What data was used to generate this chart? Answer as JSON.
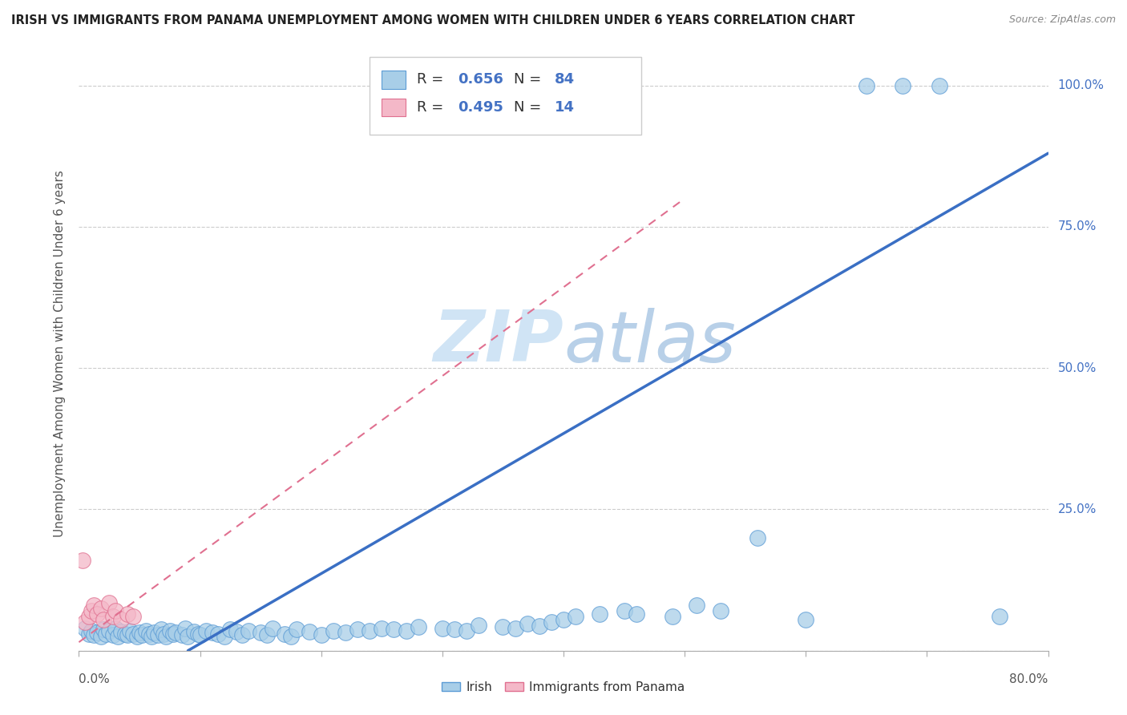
{
  "title": "IRISH VS IMMIGRANTS FROM PANAMA UNEMPLOYMENT AMONG WOMEN WITH CHILDREN UNDER 6 YEARS CORRELATION CHART",
  "source": "Source: ZipAtlas.com",
  "ylabel": "Unemployment Among Women with Children Under 6 years",
  "xlim": [
    0,
    0.8
  ],
  "ylim": [
    0.0,
    1.05
  ],
  "irish_color": "#A8CEE8",
  "irish_edge": "#5B9BD5",
  "panama_color": "#F4B8C8",
  "panama_edge": "#E07090",
  "trend_blue": "#3A6FC4",
  "trend_pink": "#E07090",
  "watermark_color": "#D0E4F5",
  "irish_x": [
    0.005,
    0.008,
    0.01,
    0.012,
    0.015,
    0.018,
    0.02,
    0.022,
    0.025,
    0.028,
    0.03,
    0.032,
    0.035,
    0.038,
    0.04,
    0.042,
    0.045,
    0.048,
    0.05,
    0.052,
    0.055,
    0.058,
    0.06,
    0.062,
    0.065,
    0.068,
    0.07,
    0.072,
    0.075,
    0.078,
    0.08,
    0.085,
    0.088,
    0.09,
    0.095,
    0.098,
    0.1,
    0.105,
    0.11,
    0.115,
    0.12,
    0.125,
    0.13,
    0.135,
    0.14,
    0.15,
    0.155,
    0.16,
    0.17,
    0.175,
    0.18,
    0.19,
    0.2,
    0.21,
    0.22,
    0.23,
    0.24,
    0.25,
    0.26,
    0.27,
    0.28,
    0.3,
    0.31,
    0.32,
    0.33,
    0.35,
    0.36,
    0.37,
    0.38,
    0.39,
    0.4,
    0.41,
    0.43,
    0.45,
    0.46,
    0.49,
    0.51,
    0.53,
    0.56,
    0.6,
    0.65,
    0.68,
    0.71,
    0.76
  ],
  "irish_y": [
    0.04,
    0.03,
    0.035,
    0.028,
    0.032,
    0.025,
    0.038,
    0.03,
    0.035,
    0.028,
    0.04,
    0.025,
    0.033,
    0.03,
    0.028,
    0.035,
    0.03,
    0.025,
    0.032,
    0.028,
    0.035,
    0.03,
    0.025,
    0.032,
    0.028,
    0.038,
    0.03,
    0.025,
    0.035,
    0.03,
    0.032,
    0.028,
    0.04,
    0.025,
    0.033,
    0.03,
    0.028,
    0.035,
    0.032,
    0.03,
    0.025,
    0.038,
    0.033,
    0.028,
    0.035,
    0.032,
    0.028,
    0.04,
    0.03,
    0.025,
    0.038,
    0.033,
    0.028,
    0.035,
    0.032,
    0.038,
    0.035,
    0.04,
    0.038,
    0.035,
    0.042,
    0.04,
    0.038,
    0.035,
    0.045,
    0.042,
    0.04,
    0.048,
    0.043,
    0.05,
    0.055,
    0.06,
    0.065,
    0.07,
    0.065,
    0.06,
    0.08,
    0.07,
    0.2,
    0.055,
    1.0,
    1.0,
    1.0,
    0.06
  ],
  "panama_x": [
    0.005,
    0.008,
    0.01,
    0.012,
    0.015,
    0.018,
    0.02,
    0.025,
    0.028,
    0.03,
    0.035,
    0.04,
    0.045,
    0.003
  ],
  "panama_y": [
    0.05,
    0.06,
    0.07,
    0.08,
    0.065,
    0.075,
    0.055,
    0.085,
    0.06,
    0.07,
    0.055,
    0.065,
    0.06,
    0.16
  ],
  "irish_trend_x": [
    0.09,
    0.8
  ],
  "irish_trend_y": [
    0.0,
    0.88
  ],
  "panama_trend_x": [
    0.0,
    0.5
  ],
  "panama_trend_y": [
    0.015,
    0.8
  ],
  "legend_R_irish": "0.656",
  "legend_N_irish": "84",
  "legend_R_panama": "0.495",
  "legend_N_panama": "14"
}
